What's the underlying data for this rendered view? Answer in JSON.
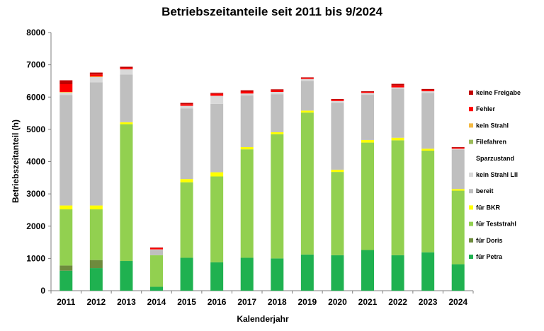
{
  "chart_data": {
    "type": "bar",
    "stacked": true,
    "title": "Betriebszeitanteile seit 2011 bis 9/2024",
    "xlabel": "Kalenderjahr",
    "ylabel": "Betriebszeitanteil (h)",
    "ylim": [
      0,
      8000
    ],
    "yticks": [
      0,
      1000,
      2000,
      3000,
      4000,
      5000,
      6000,
      7000,
      8000
    ],
    "grid": false,
    "legend_position": "right",
    "categories": [
      "2011",
      "2012",
      "2013",
      "2014",
      "2015",
      "2016",
      "2017",
      "2018",
      "2019",
      "2020",
      "2021",
      "2022",
      "2023",
      "2024"
    ],
    "series": [
      {
        "name": "für Petra",
        "color": "#1fb150",
        "values": [
          620,
          700,
          920,
          120,
          1020,
          880,
          1020,
          1000,
          1120,
          1100,
          1260,
          1100,
          1190,
          820
        ]
      },
      {
        "name": "für Doris",
        "color": "#6e8b3d",
        "values": [
          160,
          250,
          0,
          0,
          0,
          0,
          0,
          0,
          0,
          0,
          0,
          0,
          0,
          0
        ]
      },
      {
        "name": "für Teststrahl",
        "color": "#92d050",
        "values": [
          1740,
          1570,
          4240,
          980,
          2340,
          2660,
          3360,
          3850,
          4400,
          2580,
          3330,
          3560,
          3150,
          2280
        ]
      },
      {
        "name": "für BKR",
        "color": "#ffff00",
        "values": [
          120,
          120,
          60,
          0,
          100,
          130,
          70,
          60,
          60,
          70,
          80,
          80,
          60,
          50
        ]
      },
      {
        "name": "bereit",
        "color": "#bfbfbf",
        "values": [
          3420,
          3820,
          1480,
          170,
          2190,
          2120,
          1600,
          1180,
          920,
          2070,
          1400,
          1520,
          1730,
          1220
        ]
      },
      {
        "name": "kein Strahl LII",
        "color": "#d9d9d9",
        "values": [
          80,
          160,
          160,
          10,
          80,
          250,
          60,
          70,
          60,
          60,
          60,
          40,
          50,
          30
        ]
      },
      {
        "name": "Sparzustand",
        "color": "#ffffff",
        "values": [
          0,
          0,
          0,
          0,
          0,
          0,
          0,
          0,
          0,
          0,
          0,
          0,
          0,
          0
        ]
      },
      {
        "name": "Filefahren",
        "color": "#9bbb59",
        "values": [
          0,
          0,
          0,
          0,
          0,
          0,
          0,
          0,
          0,
          0,
          0,
          0,
          0,
          0
        ]
      },
      {
        "name": "kein Strahl",
        "color": "#f4b942",
        "values": [
          20,
          20,
          0,
          0,
          0,
          0,
          0,
          0,
          0,
          0,
          0,
          0,
          0,
          0
        ]
      },
      {
        "name": "Fehler",
        "color": "#ff0000",
        "values": [
          240,
          60,
          40,
          40,
          50,
          60,
          60,
          50,
          30,
          40,
          30,
          60,
          40,
          30
        ]
      },
      {
        "name": "keine Freigabe",
        "color": "#c00000",
        "values": [
          120,
          60,
          40,
          20,
          40,
          30,
          40,
          30,
          20,
          20,
          20,
          50,
          30,
          20
        ]
      }
    ],
    "legend_order": [
      "keine Freigabe",
      "Fehler",
      "kein Strahl",
      "Filefahren",
      "Sparzustand",
      "kein Strahl LII",
      "bereit",
      "für BKR",
      "für Teststrahl",
      "für Doris",
      "für Petra"
    ]
  }
}
